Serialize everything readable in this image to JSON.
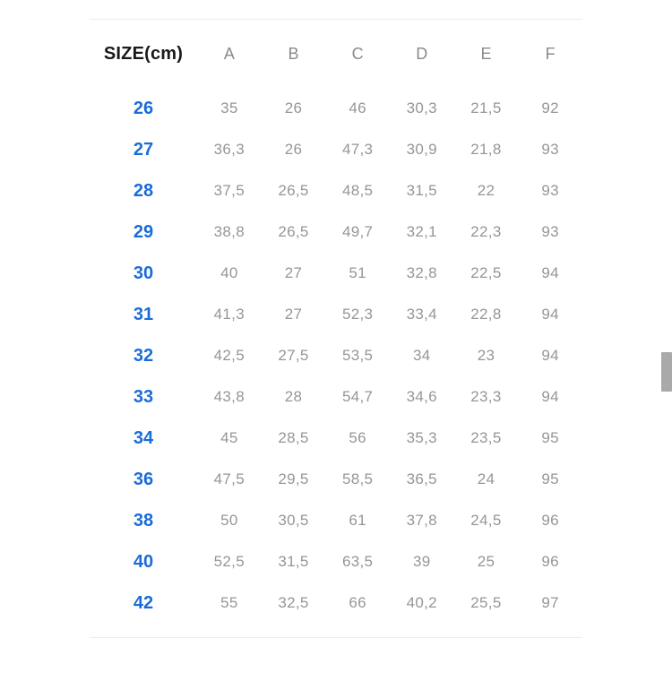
{
  "chart_data": {
    "type": "table",
    "columns": [
      "SIZE(cm)",
      "A",
      "B",
      "C",
      "D",
      "E",
      "F"
    ],
    "rows": [
      {
        "size": "26",
        "values": [
          "35",
          "26",
          "46",
          "30,3",
          "21,5",
          "92"
        ]
      },
      {
        "size": "27",
        "values": [
          "36,3",
          "26",
          "47,3",
          "30,9",
          "21,8",
          "93"
        ]
      },
      {
        "size": "28",
        "values": [
          "37,5",
          "26,5",
          "48,5",
          "31,5",
          "22",
          "93"
        ]
      },
      {
        "size": "29",
        "values": [
          "38,8",
          "26,5",
          "49,7",
          "32,1",
          "22,3",
          "93"
        ]
      },
      {
        "size": "30",
        "values": [
          "40",
          "27",
          "51",
          "32,8",
          "22,5",
          "94"
        ]
      },
      {
        "size": "31",
        "values": [
          "41,3",
          "27",
          "52,3",
          "33,4",
          "22,8",
          "94"
        ]
      },
      {
        "size": "32",
        "values": [
          "42,5",
          "27,5",
          "53,5",
          "34",
          "23",
          "94"
        ]
      },
      {
        "size": "33",
        "values": [
          "43,8",
          "28",
          "54,7",
          "34,6",
          "23,3",
          "94"
        ]
      },
      {
        "size": "34",
        "values": [
          "45",
          "28,5",
          "56",
          "35,3",
          "23,5",
          "95"
        ]
      },
      {
        "size": "36",
        "values": [
          "47,5",
          "29,5",
          "58,5",
          "36,5",
          "24",
          "95"
        ]
      },
      {
        "size": "38",
        "values": [
          "50",
          "30,5",
          "61",
          "37,8",
          "24,5",
          "96"
        ]
      },
      {
        "size": "40",
        "values": [
          "52,5",
          "31,5",
          "63,5",
          "39",
          "25",
          "96"
        ]
      },
      {
        "size": "42",
        "values": [
          "55",
          "32,5",
          "66",
          "40,2",
          "25,5",
          "97"
        ]
      }
    ]
  },
  "colors": {
    "size_accent": "#1a6cd8",
    "value_gray": "#949698",
    "column_gray": "#8a8a8a",
    "header_dark": "#1a1a1a",
    "divider": "#ededed",
    "scrollbar": "#a9a9a9",
    "page_bg": "#ffffff"
  }
}
